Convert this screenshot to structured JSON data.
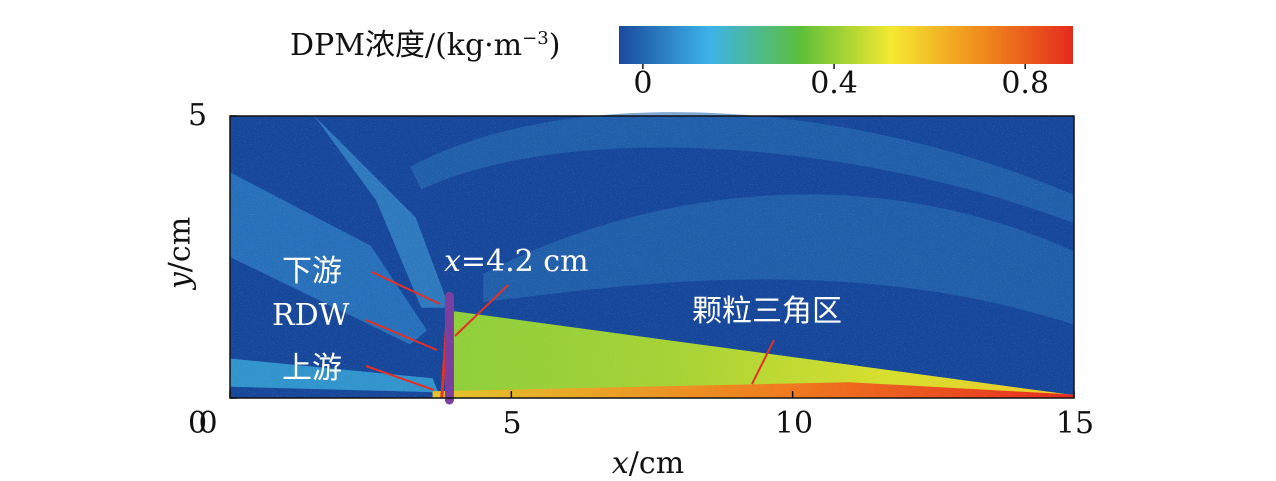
{
  "chart_data": {
    "type": "heatmap",
    "title": "",
    "colorbar": {
      "label_main": "DPM浓度/(kg·m",
      "label_exp": "−3",
      "label_close": ")",
      "ticks": [
        "0",
        "0.4",
        "0.8"
      ],
      "tick_values": [
        0,
        0.4,
        0.8
      ],
      "range": [
        -0.05,
        0.9
      ],
      "colors": [
        "#1a4a9c",
        "#3db3ea",
        "#5dbf3a",
        "#f5e830",
        "#f08a1c",
        "#e62a1e"
      ]
    },
    "xlabel_var": "x",
    "xlabel_unit": "/cm",
    "ylabel_var": "y",
    "ylabel_unit": "/cm",
    "xlim": [
      0,
      15
    ],
    "ylim": [
      0,
      5
    ],
    "xticks": [
      "0",
      "5",
      "10",
      "15"
    ],
    "yticks": [
      "0",
      "5"
    ],
    "background_color": "#17479a",
    "regions": [
      {
        "name": "颗粒三角区",
        "x_start": 3.9,
        "x_end": 15,
        "y_top_at_start": 1.55,
        "y_top_at_end": 0.05,
        "concentration_range": [
          0.35,
          0.85
        ]
      },
      {
        "name": "RDW",
        "x": 3.8,
        "y_range": [
          0,
          1.8
        ]
      }
    ],
    "annotations": [
      {
        "id": "downstream",
        "text": "下游"
      },
      {
        "id": "rdw",
        "text": "RDW"
      },
      {
        "id": "upstream",
        "text": "上游"
      },
      {
        "id": "xline",
        "text_var": "x",
        "text_rest": "=4.2 cm"
      },
      {
        "id": "triangle",
        "text": "颗粒三角区"
      }
    ],
    "marker_line": {
      "x": 4.2,
      "color": "#7b3fa0"
    }
  }
}
